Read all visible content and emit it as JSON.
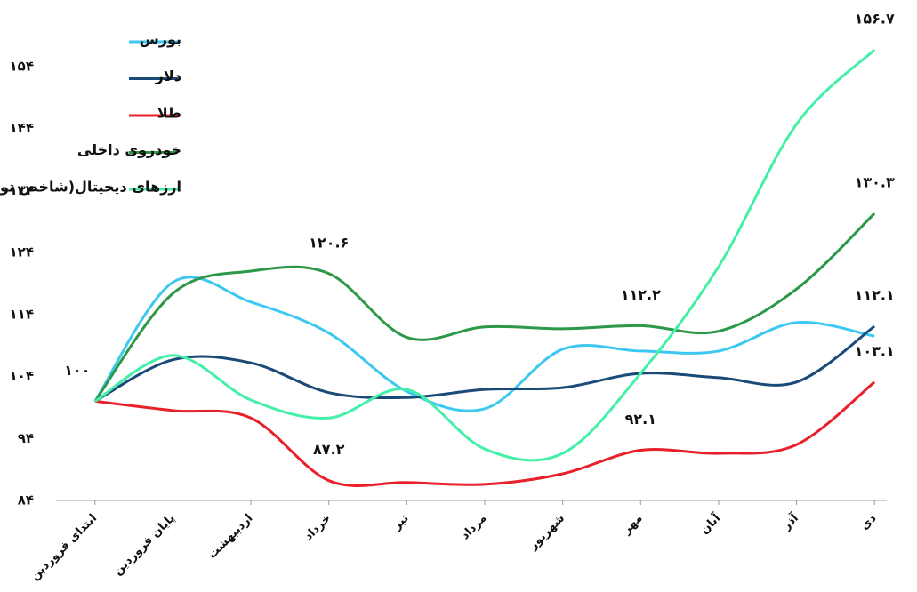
{
  "chart_data": {
    "type": "line",
    "categories": [
      "ابتدای فروردین",
      "پایان فروردین",
      "اردیبهشت",
      "خرداد",
      "تیر",
      "مرداد",
      "شهریور",
      "مهر",
      "آبان",
      "آذر",
      "دی"
    ],
    "ylim": [
      84,
      160
    ],
    "yticks": [
      {
        "value": 84,
        "label": "۸۴"
      },
      {
        "value": 94,
        "label": "۹۴"
      },
      {
        "value": 104,
        "label": "۱۰۴"
      },
      {
        "value": 114,
        "label": "۱۱۴"
      },
      {
        "value": 124,
        "label": "۱۲۴"
      },
      {
        "value": 134,
        "label": "۱۳۴"
      },
      {
        "value": 144,
        "label": "۱۴۴"
      },
      {
        "value": 154,
        "label": "۱۵۴"
      }
    ],
    "grid": false,
    "legend": "top-left",
    "series": [
      {
        "name": "بورس",
        "color": "#3cc8f0",
        "values": [
          100,
          119.2,
          116,
          111,
          101.6,
          98.8,
          108.4,
          108.1,
          108.1,
          112.7,
          110.5
        ],
        "value_labels": [
          "۱۰۰",
          null,
          null,
          null,
          null,
          null,
          null,
          null,
          null,
          null,
          null
        ]
      },
      {
        "name": "دلار",
        "color": "#1a4a78",
        "values": [
          100,
          106.7,
          106.2,
          101.4,
          100.6,
          101.9,
          102.2,
          104.5,
          103.8,
          103.1,
          112.1
        ],
        "value_labels": [
          null,
          null,
          null,
          null,
          null,
          null,
          null,
          null,
          null,
          null,
          "۱۱۲.۱"
        ]
      },
      {
        "name": "طلا",
        "color": "#e8202a",
        "values": [
          100,
          98.5,
          97.3,
          87.2,
          86.9,
          86.6,
          88.3,
          92.1,
          91.6,
          93,
          103.1
        ],
        "value_labels": [
          null,
          null,
          null,
          "۸۷.۲",
          null,
          null,
          null,
          "۹۲.۱",
          null,
          null,
          "۱۰۳.۱"
        ]
      },
      {
        "name": "خودروی داخلی",
        "color": "#2c9848",
        "values": [
          100,
          117.4,
          121,
          120.6,
          110.3,
          112,
          111.7,
          112.2,
          111.3,
          118.1,
          130.3
        ],
        "value_labels": [
          null,
          null,
          null,
          "۱۲۰.۶",
          null,
          null,
          null,
          "۱۱۲.۲",
          null,
          null,
          "۱۳۰.۳"
        ]
      },
      {
        "name": "ارزهای دیجیتال(شاخص توتال-ریالی)",
        "color": "#44f0a8",
        "values": [
          100,
          107.4,
          100.2,
          97.3,
          101.9,
          92.3,
          91.6,
          104.5,
          121.7,
          144.7,
          156.7
        ],
        "value_labels": [
          null,
          null,
          null,
          null,
          null,
          null,
          null,
          null,
          null,
          null,
          "۱۵۶.۷"
        ]
      }
    ]
  }
}
